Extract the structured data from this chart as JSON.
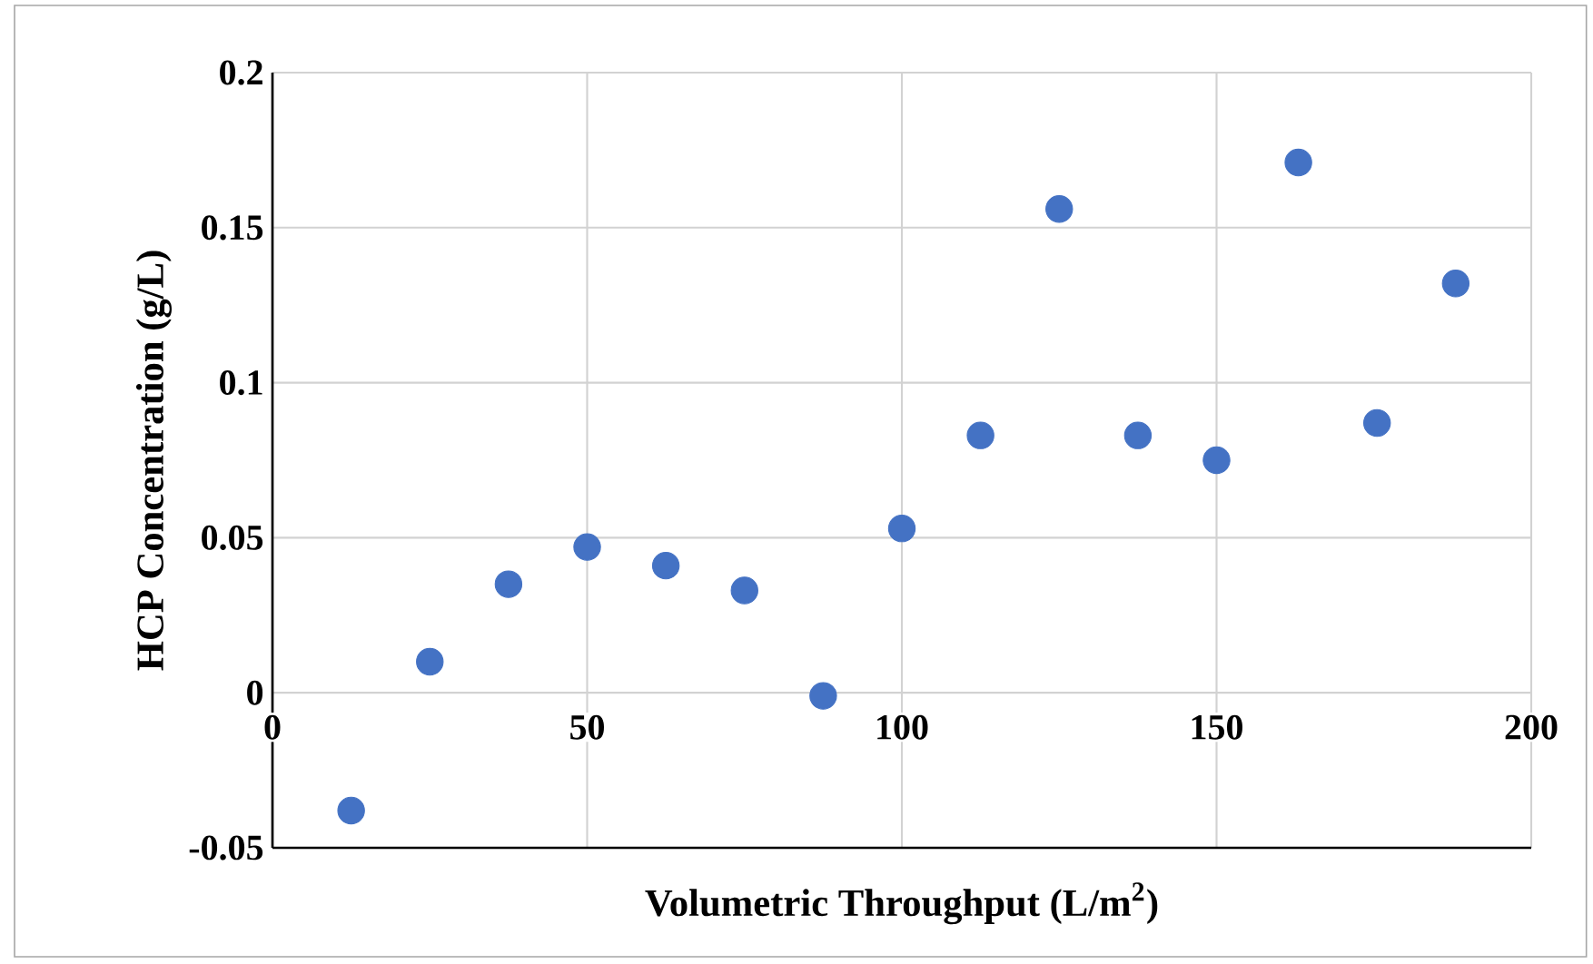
{
  "chart_data": {
    "type": "scatter",
    "xlabel": "Volumetric Throughput (L/m$^{2}$)",
    "ylabel": "HCP Concentration (g/L)",
    "x": [
      12.5,
      25,
      37.5,
      50,
      62.5,
      75,
      87.5,
      100,
      112.5,
      125,
      137.5,
      150,
      163,
      175.5,
      188
    ],
    "values": [
      -0.038,
      0.01,
      0.035,
      0.047,
      0.041,
      0.033,
      -0.001,
      0.053,
      0.083,
      0.156,
      0.083,
      0.075,
      0.171,
      0.087,
      0.132
    ],
    "color": "#4472c4",
    "marker": "circle",
    "xlim": [
      0,
      200
    ],
    "xticks": [
      0,
      50,
      100,
      150,
      200
    ],
    "ylim": [
      -0.05,
      0.2
    ],
    "yticks": [
      -0.05,
      0,
      0.05,
      0.1,
      0.15,
      0.2
    ],
    "grid": true
  }
}
